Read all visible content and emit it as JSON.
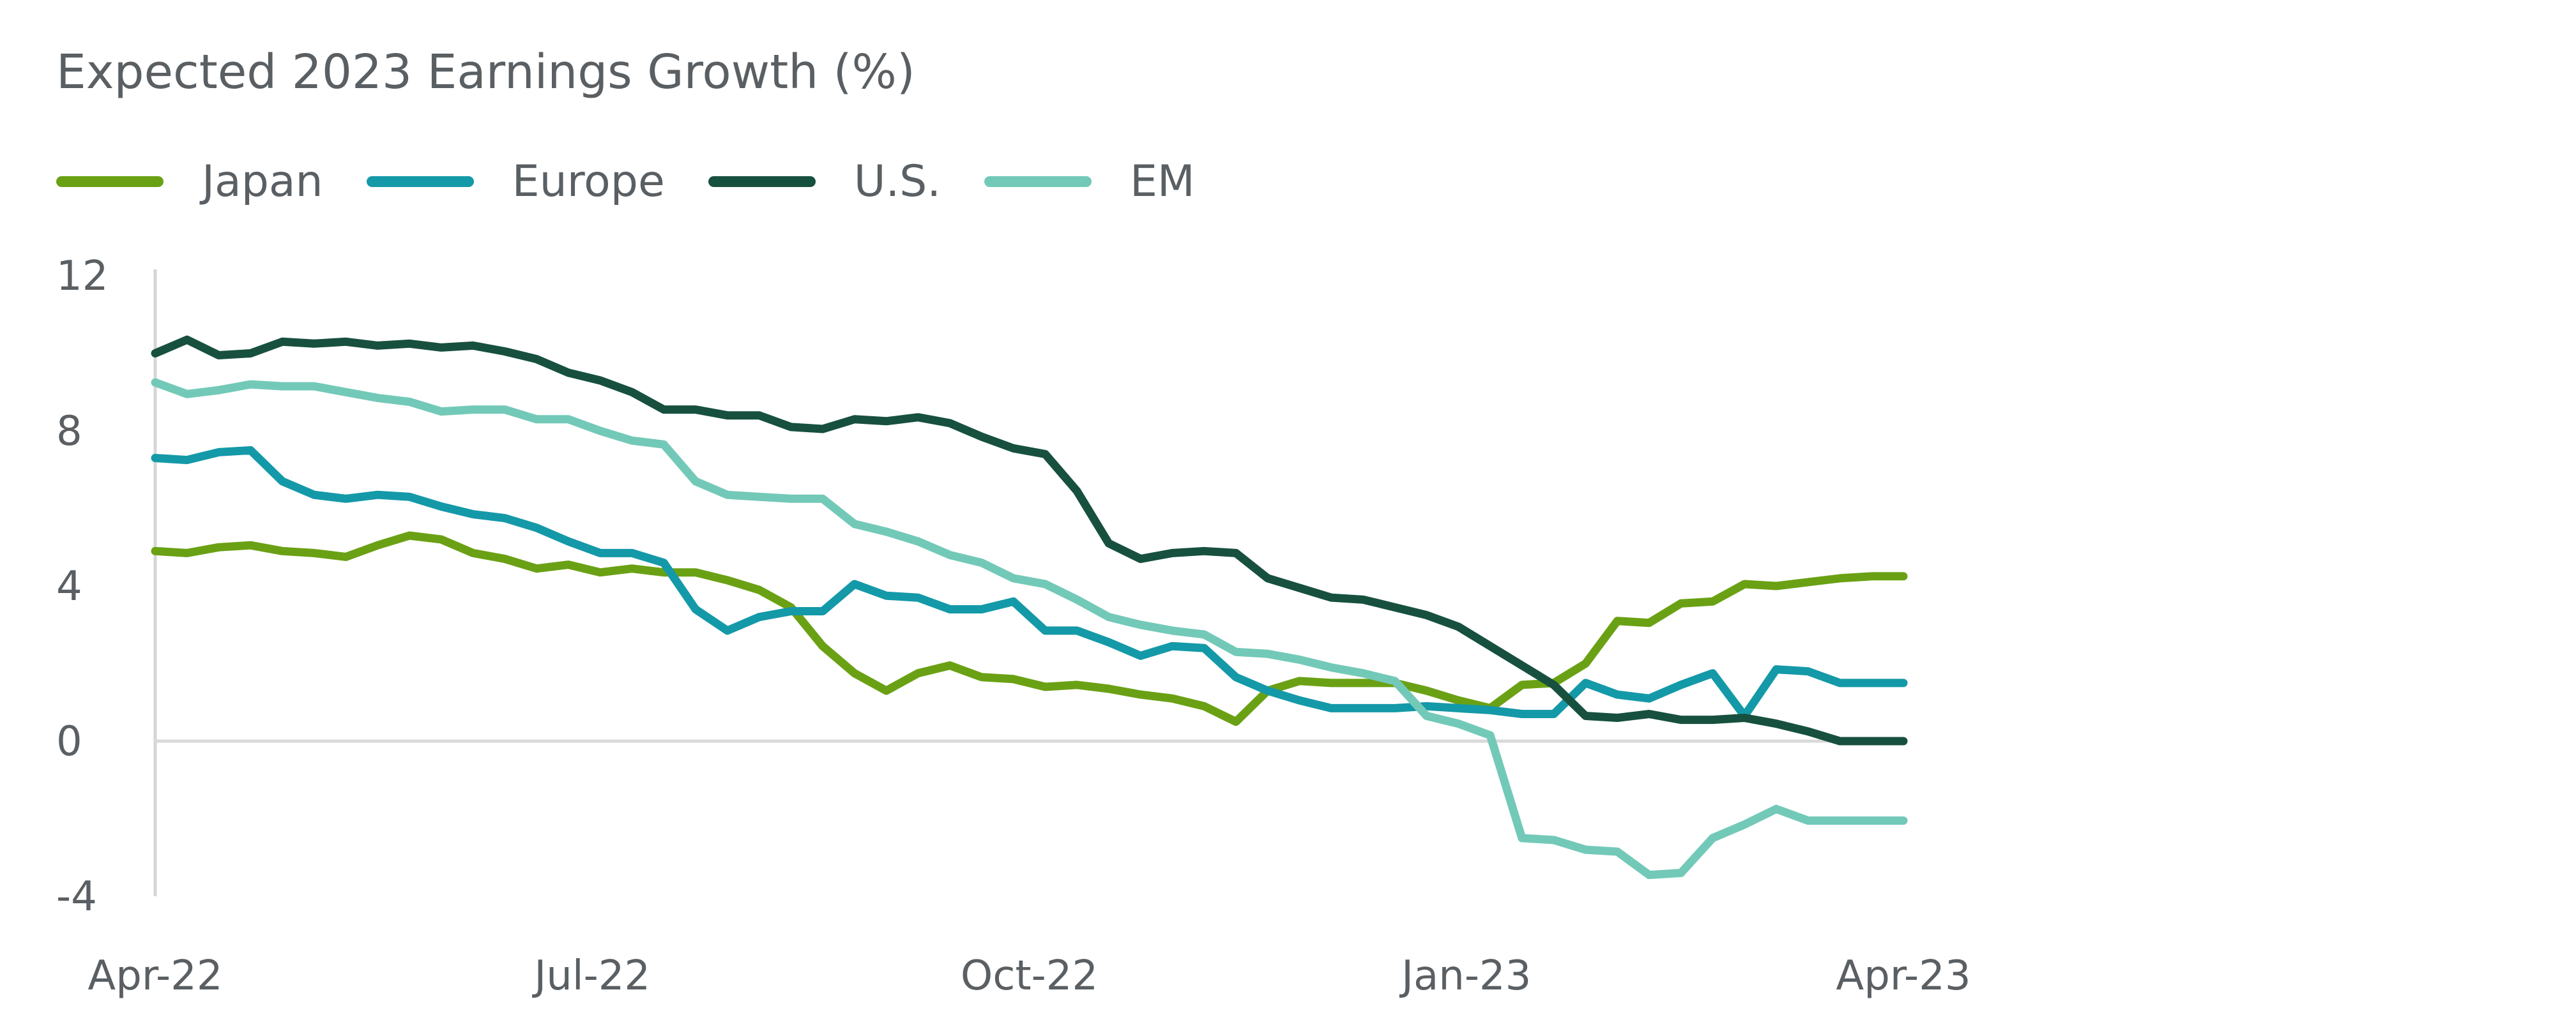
{
  "chart_data": {
    "type": "line",
    "title": "Expected 2023 Earnings Growth (%)",
    "xlabel": "",
    "ylabel": "",
    "x_tick_labels": [
      "Apr-22",
      "Jul-22",
      "Oct-22",
      "Jan-23",
      "Apr-23"
    ],
    "y_ticks": [
      -4,
      0,
      4,
      8,
      12
    ],
    "ylim": [
      -4,
      12
    ],
    "legend_position": "top-left",
    "grid": false,
    "series": [
      {
        "name": "Japan",
        "color": "#6aa114",
        "values": [
          4.9,
          4.85,
          5.0,
          5.05,
          4.9,
          4.85,
          4.75,
          5.05,
          5.3,
          5.2,
          4.85,
          4.7,
          4.45,
          4.55,
          4.35,
          4.45,
          4.35,
          4.35,
          4.15,
          3.9,
          3.45,
          2.45,
          1.75,
          1.3,
          1.75,
          1.95,
          1.65,
          1.6,
          1.4,
          1.45,
          1.35,
          1.2,
          1.1,
          0.9,
          0.5,
          1.3,
          1.55,
          1.5,
          1.5,
          1.5,
          1.3,
          1.05,
          0.85,
          1.45,
          1.5,
          2.0,
          3.1,
          3.05,
          3.55,
          3.6,
          4.05,
          4.0,
          4.1,
          4.2,
          4.25,
          4.25
        ]
      },
      {
        "name": "Europe",
        "color": "#1499a8",
        "values": [
          7.3,
          7.25,
          7.45,
          7.5,
          6.7,
          6.35,
          6.25,
          6.35,
          6.3,
          6.05,
          5.85,
          5.75,
          5.5,
          5.15,
          4.85,
          4.85,
          4.6,
          3.4,
          2.85,
          3.2,
          3.35,
          3.35,
          4.05,
          3.75,
          3.7,
          3.4,
          3.4,
          3.6,
          2.85,
          2.85,
          2.55,
          2.2,
          2.45,
          2.4,
          1.65,
          1.3,
          1.05,
          0.85,
          0.85,
          0.85,
          0.9,
          0.85,
          0.8,
          0.7,
          0.7,
          1.5,
          1.2,
          1.1,
          1.45,
          1.75,
          0.65,
          1.85,
          1.8,
          1.5,
          1.5,
          1.5
        ]
      },
      {
        "name": "U.S.",
        "color": "#17503f",
        "values": [
          10.0,
          10.35,
          9.95,
          10.0,
          10.3,
          10.25,
          10.3,
          10.2,
          10.25,
          10.15,
          10.2,
          10.05,
          9.85,
          9.5,
          9.3,
          9.0,
          8.55,
          8.55,
          8.4,
          8.4,
          8.1,
          8.05,
          8.3,
          8.25,
          8.35,
          8.2,
          7.85,
          7.55,
          7.4,
          6.45,
          5.1,
          4.7,
          4.85,
          4.9,
          4.85,
          4.2,
          3.95,
          3.7,
          3.65,
          3.45,
          3.25,
          2.95,
          2.45,
          1.95,
          1.45,
          0.65,
          0.6,
          0.7,
          0.55,
          0.55,
          0.6,
          0.45,
          0.25,
          0.0,
          0.0,
          0.0
        ]
      },
      {
        "name": "EM",
        "color": "#73c9b8",
        "values": [
          9.25,
          8.95,
          9.05,
          9.2,
          9.15,
          9.15,
          9.0,
          8.85,
          8.75,
          8.5,
          8.55,
          8.55,
          8.3,
          8.3,
          8.0,
          7.75,
          7.65,
          6.7,
          6.35,
          6.3,
          6.25,
          6.25,
          5.6,
          5.4,
          5.15,
          4.8,
          4.6,
          4.2,
          4.05,
          3.65,
          3.2,
          3.0,
          2.85,
          2.75,
          2.3,
          2.25,
          2.1,
          1.9,
          1.75,
          1.55,
          0.65,
          0.45,
          0.15,
          -2.5,
          -2.55,
          -2.8,
          -2.85,
          -3.45,
          -3.4,
          -2.5,
          -2.15,
          -1.75,
          -2.05,
          -2.05,
          -2.05,
          -2.05
        ]
      }
    ]
  }
}
